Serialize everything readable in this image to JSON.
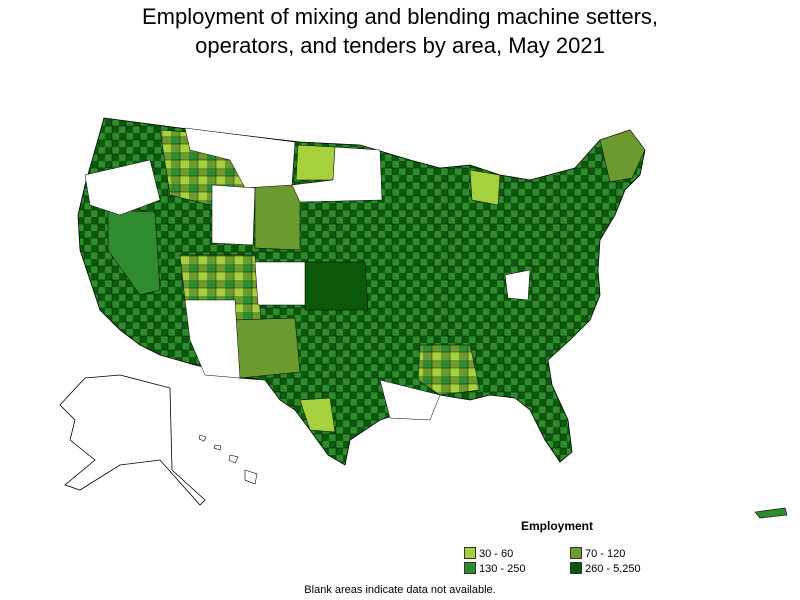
{
  "title": {
    "line1": "Employment of mixing and blending machine setters,",
    "line2": "operators, and tenders by area, May 2021"
  },
  "legend": {
    "title": "Employment",
    "items": [
      {
        "label": "30 - 60",
        "color": "#a6d13c"
      },
      {
        "label": "70 - 120",
        "color": "#6b9a2e"
      },
      {
        "label": "130 - 250",
        "color": "#2e8b2e"
      },
      {
        "label": "260 - 5,250",
        "color": "#0a5a0a"
      }
    ]
  },
  "note": "Blank areas indicate data not available.",
  "colors": {
    "no_data": "#ffffff",
    "border": "#000000"
  }
}
